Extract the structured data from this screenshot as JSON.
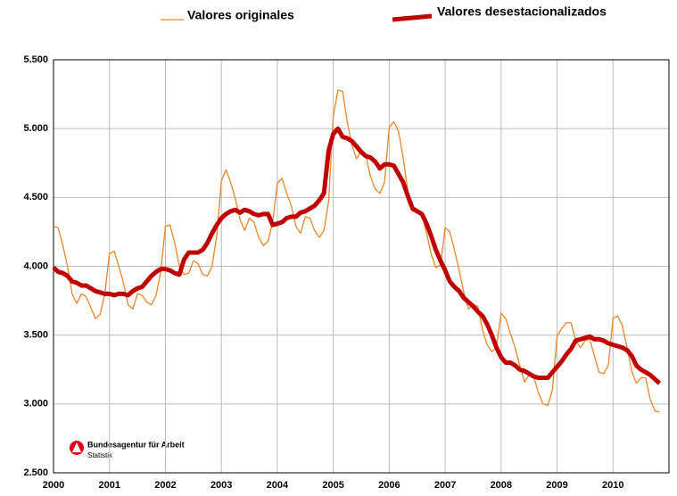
{
  "chart_data": {
    "type": "line",
    "x": [
      2000,
      2000.0833,
      2000.1667,
      2000.25,
      2000.3333,
      2000.4167,
      2000.5,
      2000.5833,
      2000.6667,
      2000.75,
      2000.8333,
      2000.9167,
      2001,
      2001.0833,
      2001.1667,
      2001.25,
      2001.3333,
      2001.4167,
      2001.5,
      2001.5833,
      2001.6667,
      2001.75,
      2001.8333,
      2001.9167,
      2002,
      2002.0833,
      2002.1667,
      2002.25,
      2002.3333,
      2002.4167,
      2002.5,
      2002.5833,
      2002.6667,
      2002.75,
      2002.8333,
      2002.9167,
      2003,
      2003.0833,
      2003.1667,
      2003.25,
      2003.3333,
      2003.4167,
      2003.5,
      2003.5833,
      2003.6667,
      2003.75,
      2003.8333,
      2003.9167,
      2004,
      2004.0833,
      2004.1667,
      2004.25,
      2004.3333,
      2004.4167,
      2004.5,
      2004.5833,
      2004.6667,
      2004.75,
      2004.8333,
      2004.9167,
      2005,
      2005.0833,
      2005.1667,
      2005.25,
      2005.3333,
      2005.4167,
      2005.5,
      2005.5833,
      2005.6667,
      2005.75,
      2005.8333,
      2005.9167,
      2006,
      2006.0833,
      2006.1667,
      2006.25,
      2006.3333,
      2006.4167,
      2006.5,
      2006.5833,
      2006.6667,
      2006.75,
      2006.8333,
      2006.9167,
      2007,
      2007.0833,
      2007.1667,
      2007.25,
      2007.3333,
      2007.4167,
      2007.5,
      2007.5833,
      2007.6667,
      2007.75,
      2007.8333,
      2007.9167,
      2008,
      2008.0833,
      2008.1667,
      2008.25,
      2008.3333,
      2008.4167,
      2008.5,
      2008.5833,
      2008.6667,
      2008.75,
      2008.8333,
      2008.9167,
      2009,
      2009.0833,
      2009.1667,
      2009.25,
      2009.3333,
      2009.4167,
      2009.5,
      2009.5833,
      2009.6667,
      2009.75,
      2009.8333,
      2009.9167,
      2010,
      2010.0833,
      2010.1667,
      2010.25,
      2010.3333,
      2010.4167,
      2010.5,
      2010.5833,
      2010.6667,
      2010.75,
      2010.8333
    ],
    "series": [
      {
        "name": "Valores originales",
        "color": "#e8862a",
        "width": 1.3,
        "values": [
          4290,
          4280,
          4150,
          4000,
          3800,
          3730,
          3800,
          3780,
          3700,
          3620,
          3650,
          3800,
          4090,
          4110,
          4000,
          3880,
          3720,
          3690,
          3800,
          3790,
          3740,
          3720,
          3790,
          3960,
          4290,
          4300,
          4170,
          4000,
          3940,
          3950,
          4040,
          4020,
          3940,
          3930,
          4000,
          4220,
          4620,
          4700,
          4610,
          4490,
          4340,
          4260,
          4350,
          4320,
          4210,
          4150,
          4180,
          4320,
          4600,
          4640,
          4530,
          4440,
          4290,
          4240,
          4360,
          4350,
          4260,
          4210,
          4260,
          4470,
          5090,
          5280,
          5270,
          5050,
          4880,
          4780,
          4840,
          4800,
          4650,
          4560,
          4530,
          4610,
          5010,
          5050,
          4980,
          4790,
          4540,
          4400,
          4400,
          4370,
          4240,
          4090,
          3990,
          4010,
          4280,
          4250,
          4120,
          3970,
          3810,
          3690,
          3720,
          3710,
          3540,
          3430,
          3380,
          3410,
          3660,
          3620,
          3510,
          3410,
          3280,
          3160,
          3210,
          3200,
          3080,
          3000,
          2990,
          3100,
          3490,
          3550,
          3590,
          3590,
          3460,
          3410,
          3460,
          3470,
          3350,
          3230,
          3220,
          3280,
          3620,
          3640,
          3570,
          3410,
          3240,
          3150,
          3190,
          3190,
          3030,
          2950,
          2940
        ]
      },
      {
        "name": "Valores desestacionalizados",
        "color": "#c00000",
        "width": 5,
        "values": [
          3990,
          3960,
          3950,
          3930,
          3890,
          3880,
          3860,
          3860,
          3840,
          3820,
          3810,
          3800,
          3800,
          3790,
          3800,
          3800,
          3790,
          3820,
          3840,
          3850,
          3890,
          3930,
          3960,
          3980,
          3980,
          3970,
          3950,
          3940,
          4050,
          4100,
          4100,
          4100,
          4120,
          4170,
          4240,
          4300,
          4350,
          4380,
          4400,
          4410,
          4390,
          4410,
          4400,
          4380,
          4370,
          4380,
          4380,
          4300,
          4310,
          4320,
          4350,
          4360,
          4360,
          4390,
          4400,
          4420,
          4440,
          4480,
          4530,
          4840,
          4960,
          5000,
          4940,
          4930,
          4910,
          4870,
          4830,
          4800,
          4790,
          4760,
          4710,
          4740,
          4740,
          4730,
          4670,
          4610,
          4510,
          4420,
          4400,
          4380,
          4310,
          4220,
          4120,
          4040,
          3970,
          3890,
          3850,
          3820,
          3770,
          3740,
          3710,
          3670,
          3640,
          3580,
          3500,
          3410,
          3340,
          3300,
          3300,
          3280,
          3250,
          3240,
          3220,
          3200,
          3190,
          3190,
          3190,
          3230,
          3270,
          3310,
          3360,
          3400,
          3460,
          3470,
          3480,
          3490,
          3470,
          3470,
          3460,
          3440,
          3430,
          3420,
          3410,
          3390,
          3350,
          3280,
          3250,
          3230,
          3210,
          3180,
          3150
        ]
      }
    ],
    "xlim": [
      2000,
      2011
    ],
    "xticks": [
      2000,
      2001,
      2002,
      2003,
      2004,
      2005,
      2006,
      2007,
      2008,
      2009,
      2010
    ],
    "ylim": [
      2500,
      5500
    ],
    "yticks": [
      {
        "value": 2500,
        "label": "2.500"
      },
      {
        "value": 3000,
        "label": "3.000"
      },
      {
        "value": 3500,
        "label": "3.500"
      },
      {
        "value": 4000,
        "label": "4.000"
      },
      {
        "value": 4500,
        "label": "4.500"
      },
      {
        "value": 5000,
        "label": "5.000"
      },
      {
        "value": 5500,
        "label": "5.500"
      }
    ],
    "grid": true,
    "legend": "top",
    "annotations": [
      "Bundesagentur für Arbeit",
      "Statistik"
    ]
  }
}
